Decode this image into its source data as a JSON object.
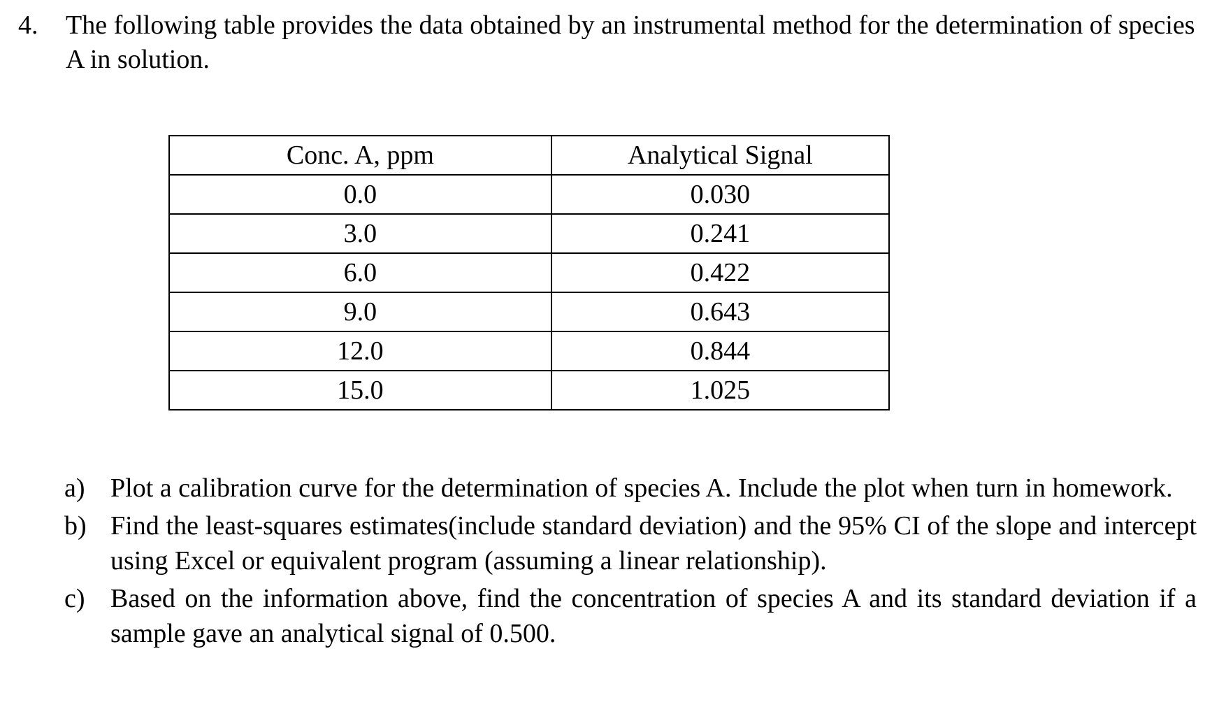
{
  "question": {
    "number": "4.",
    "text": "The following table provides the data obtained by an instrumental method for the determination of species A in solution."
  },
  "table": {
    "headers": [
      "Conc. A, ppm",
      "Analytical Signal"
    ],
    "rows": [
      [
        "0.0",
        "0.030"
      ],
      [
        "3.0",
        "0.241"
      ],
      [
        "6.0",
        "0.422"
      ],
      [
        "9.0",
        "0.643"
      ],
      [
        "12.0",
        "0.844"
      ],
      [
        "15.0",
        "1.025"
      ]
    ]
  },
  "parts": [
    {
      "letter": "a)",
      "text": "Plot a calibration curve for the determination of species A. Include the plot when turn in homework."
    },
    {
      "letter": "b)",
      "text": "Find the least-squares estimates(include standard deviation)  and the 95% CI of the slope and intercept using Excel or equivalent program (assuming a linear relationship)."
    },
    {
      "letter": "c)",
      "text": "Based on the information above, find the concentration of species A and its standard deviation if a sample gave an analytical signal of 0.500."
    }
  ]
}
